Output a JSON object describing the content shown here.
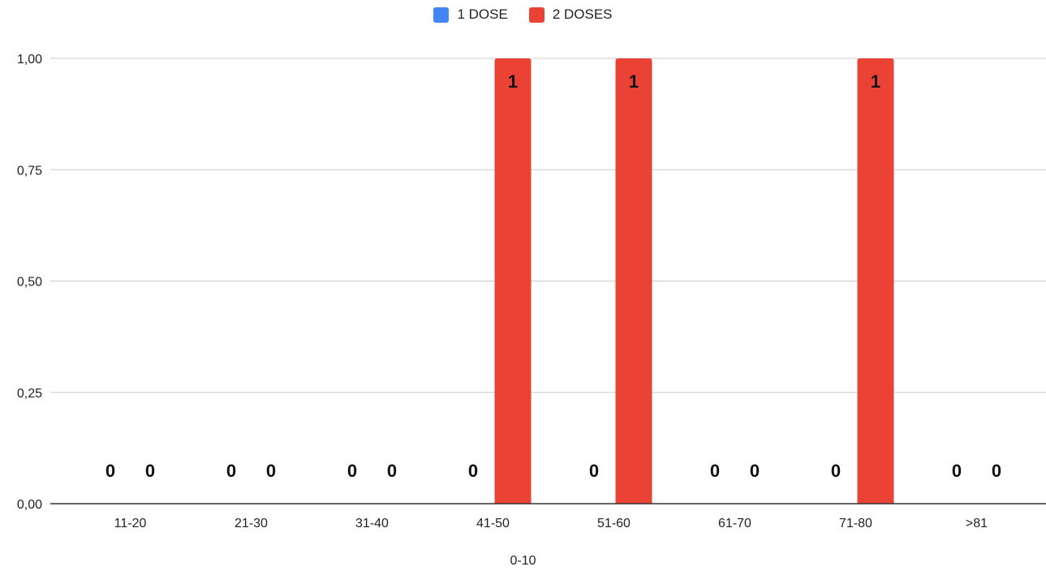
{
  "chart_data": {
    "type": "bar",
    "title": "",
    "xlabel": "0-10",
    "ylabel": "",
    "categories": [
      "11-20",
      "21-30",
      "31-40",
      "41-50",
      "51-60",
      "61-70",
      "71-80",
      ">81"
    ],
    "series": [
      {
        "name": "1 DOSE",
        "color": "#4285f4",
        "values": [
          0,
          0,
          0,
          0,
          0,
          0,
          0,
          0
        ]
      },
      {
        "name": "2 DOSES",
        "color": "#ea4335",
        "values": [
          0,
          0,
          0,
          1,
          1,
          0,
          1,
          0
        ]
      }
    ],
    "yticks": [
      "0,00",
      "0,25",
      "0,50",
      "0,75",
      "1,00"
    ],
    "ylim": [
      0,
      1
    ],
    "grid": true,
    "legend": "top-center"
  }
}
